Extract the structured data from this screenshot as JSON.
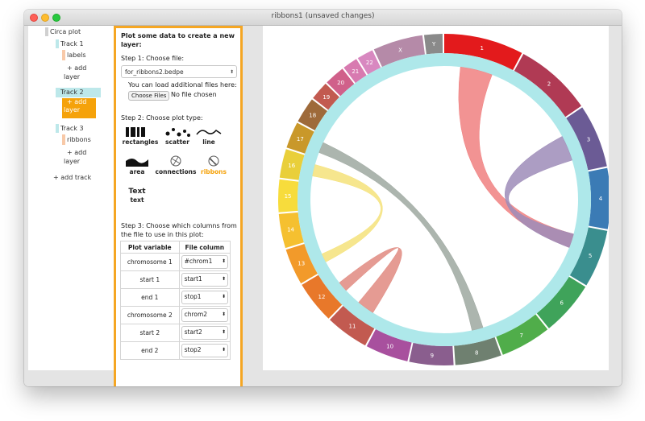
{
  "window": {
    "title": "ribbons1 (unsaved changes)"
  },
  "tree": {
    "root": "Circa plot",
    "tracks": [
      {
        "label": "Track 1",
        "children": [
          "labels",
          "+ add\nlayer"
        ]
      },
      {
        "label": "Track 2",
        "children": [
          "+ add\nlayer"
        ]
      },
      {
        "label": "Track 3",
        "children": [
          "ribbons",
          "+ add\nlayer"
        ]
      }
    ],
    "track1": "Track 1",
    "t1_labels": "labels",
    "t1_add": "+ add",
    "t1_add2": "layer",
    "track2": "Track 2",
    "t2_add": "+ add",
    "t2_add2": "layer",
    "track3": "Track 3",
    "t3_ribbons": "ribbons",
    "t3_add": "+ add",
    "t3_add2": "layer",
    "add_track": "+ add track"
  },
  "form": {
    "heading1": "Plot some data to create a new",
    "heading2": "layer:",
    "step1": "Step 1: Choose file:",
    "file_value": "for_ribbons2.bedpe",
    "load_note": "You can load additional files here:",
    "choose_files": "Choose Files",
    "no_file": "No file chosen",
    "step2": "Step 2: Choose plot type:",
    "types": {
      "rectangles": "rectangles",
      "scatter": "scatter",
      "line": "line",
      "area": "area",
      "connections": "connections",
      "ribbons": "ribbons",
      "text_icon": "Text",
      "text": "text"
    },
    "step3_1": "Step 3: Choose which columns from",
    "step3_2": "the file to use in this plot:",
    "table": {
      "h_var": "Plot variable",
      "h_col": "File column",
      "rows": [
        {
          "var": "chromosome 1",
          "col": "#chrom1"
        },
        {
          "var": "start 1",
          "col": "start1"
        },
        {
          "var": "end 1",
          "col": "stop1"
        },
        {
          "var": "chromosome 2",
          "col": "chrom2"
        },
        {
          "var": "start 2",
          "col": "start2"
        },
        {
          "var": "end 2",
          "col": "stop2"
        }
      ]
    }
  },
  "plot": {
    "chromosomes": [
      "1",
      "2",
      "3",
      "4",
      "5",
      "6",
      "7",
      "8",
      "9",
      "10",
      "11",
      "12",
      "13",
      "14",
      "15",
      "16",
      "17",
      "18",
      "19",
      "20",
      "21",
      "22",
      "X",
      "Y"
    ],
    "colors": [
      "#e31a1c",
      "#b03a54",
      "#6b5b95",
      "#3b7bb5",
      "#3a8e8e",
      "#3fa35a",
      "#50ad4a",
      "#6f8070",
      "#8a5e8e",
      "#a8509e",
      "#c25a50",
      "#e8782a",
      "#f29a2a",
      "#f5c030",
      "#f7dc3c",
      "#e9cf3a",
      "#c9982a",
      "#9e6a3a",
      "#c25a50",
      "#d0608a",
      "#d87ab0",
      "#d888c0",
      "#b58aa8",
      "#8a8a8a"
    ],
    "ring_color": "#aee8ea",
    "ribbons": [
      {
        "from": "1",
        "to": "5",
        "color": "#f08080"
      },
      {
        "from": "3",
        "to": "5",
        "color": "#9e8cb8"
      },
      {
        "from": "16",
        "to": "13",
        "color": "#f5e27a"
      },
      {
        "from": "17",
        "to": "8",
        "color": "#9ea8a0"
      },
      {
        "from": "11",
        "to": "12",
        "color": "#e08a80"
      }
    ]
  }
}
